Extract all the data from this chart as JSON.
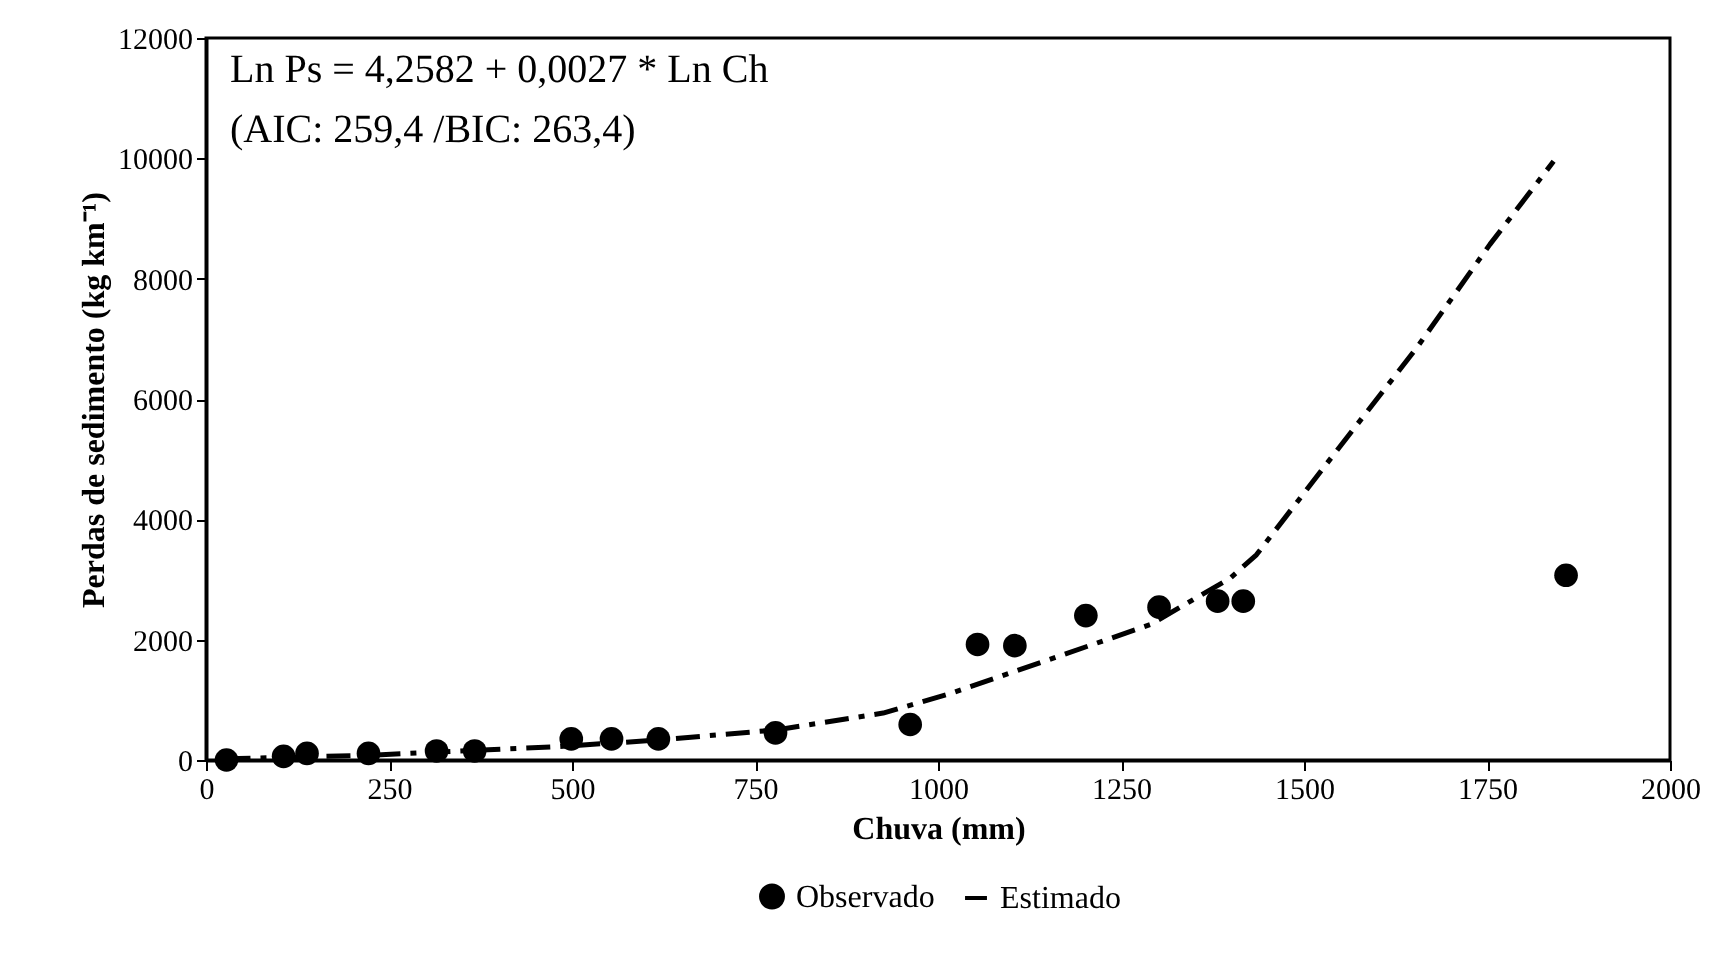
{
  "chart_data": {
    "type": "scatter",
    "xlabel": "Chuva (mm)",
    "ylabel": "Perdas de sedimento (kg km⁻¹)",
    "xlim": [
      0,
      2000
    ],
    "xticks": [
      0,
      250,
      500,
      750,
      1000,
      1250,
      1500,
      1750,
      2000
    ],
    "ylim": [
      0,
      12000
    ],
    "yticks": [
      0,
      2000,
      4000,
      6000,
      8000,
      10000,
      12000
    ],
    "grid": false,
    "legend": "bottom",
    "annotations": [
      "Ln Ps = 4,2582 + 0,0027 * Ln  Ch",
      "(AIC: 259,4 /BIC: 263,4)"
    ],
    "series": [
      {
        "name": "Observado",
        "marker": "circle",
        "color": "#000000",
        "x": [
          28,
          106,
          138,
          222,
          315,
          367,
          499,
          554,
          618,
          778,
          962,
          1054,
          1105,
          1202,
          1302,
          1382,
          1417,
          1858
        ],
        "values": [
          0,
          60,
          110,
          110,
          150,
          150,
          350,
          350,
          350,
          450,
          590,
          1920,
          1900,
          2400,
          2540,
          2640,
          2640,
          3070
        ]
      },
      {
        "name": "Estimado",
        "type": "line",
        "color": "#000000",
        "line_style": "dashed",
        "x": [
          28,
          224,
          369,
          478,
          615,
          779,
          925,
          1016,
          1290,
          1399,
          1435,
          1544,
          1654,
          1754,
          1841
        ],
        "values": [
          20,
          80,
          160,
          220,
          330,
          500,
          780,
          1100,
          2250,
          3020,
          3410,
          5130,
          6850,
          8570,
          9950
        ]
      }
    ]
  }
}
